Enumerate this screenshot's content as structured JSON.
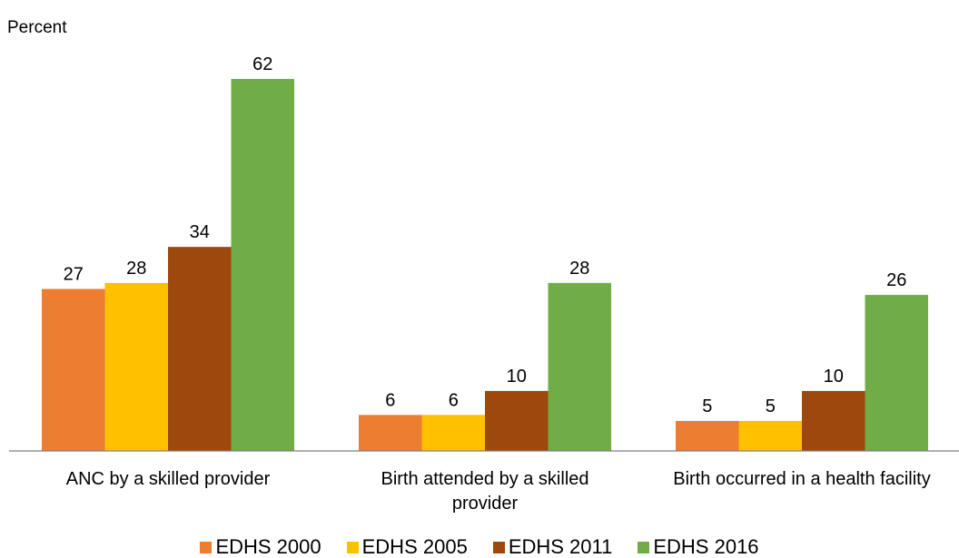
{
  "chart_data": {
    "type": "bar",
    "ylabel": "Percent",
    "categories": [
      "ANC by a skilled provider",
      "Birth attended by a skilled provider",
      "Birth occurred in a health facility"
    ],
    "category_lines": [
      [
        "ANC by a skilled provider"
      ],
      [
        "Birth attended by a skilled",
        "provider"
      ],
      [
        "Birth occurred in a health facility"
      ]
    ],
    "series": [
      {
        "name": "EDHS 2000",
        "color": "#ed7d31",
        "values": [
          27,
          6,
          5
        ]
      },
      {
        "name": "EDHS 2005",
        "color": "#ffc000",
        "values": [
          28,
          6,
          5
        ]
      },
      {
        "name": "EDHS 2011",
        "color": "#9e480e",
        "values": [
          34,
          10,
          10
        ]
      },
      {
        "name": "EDHS 2016",
        "color": "#70ad47",
        "values": [
          62,
          28,
          26
        ]
      }
    ],
    "ylim": [
      0,
      65
    ],
    "grid": false,
    "legend_position": "bottom"
  }
}
